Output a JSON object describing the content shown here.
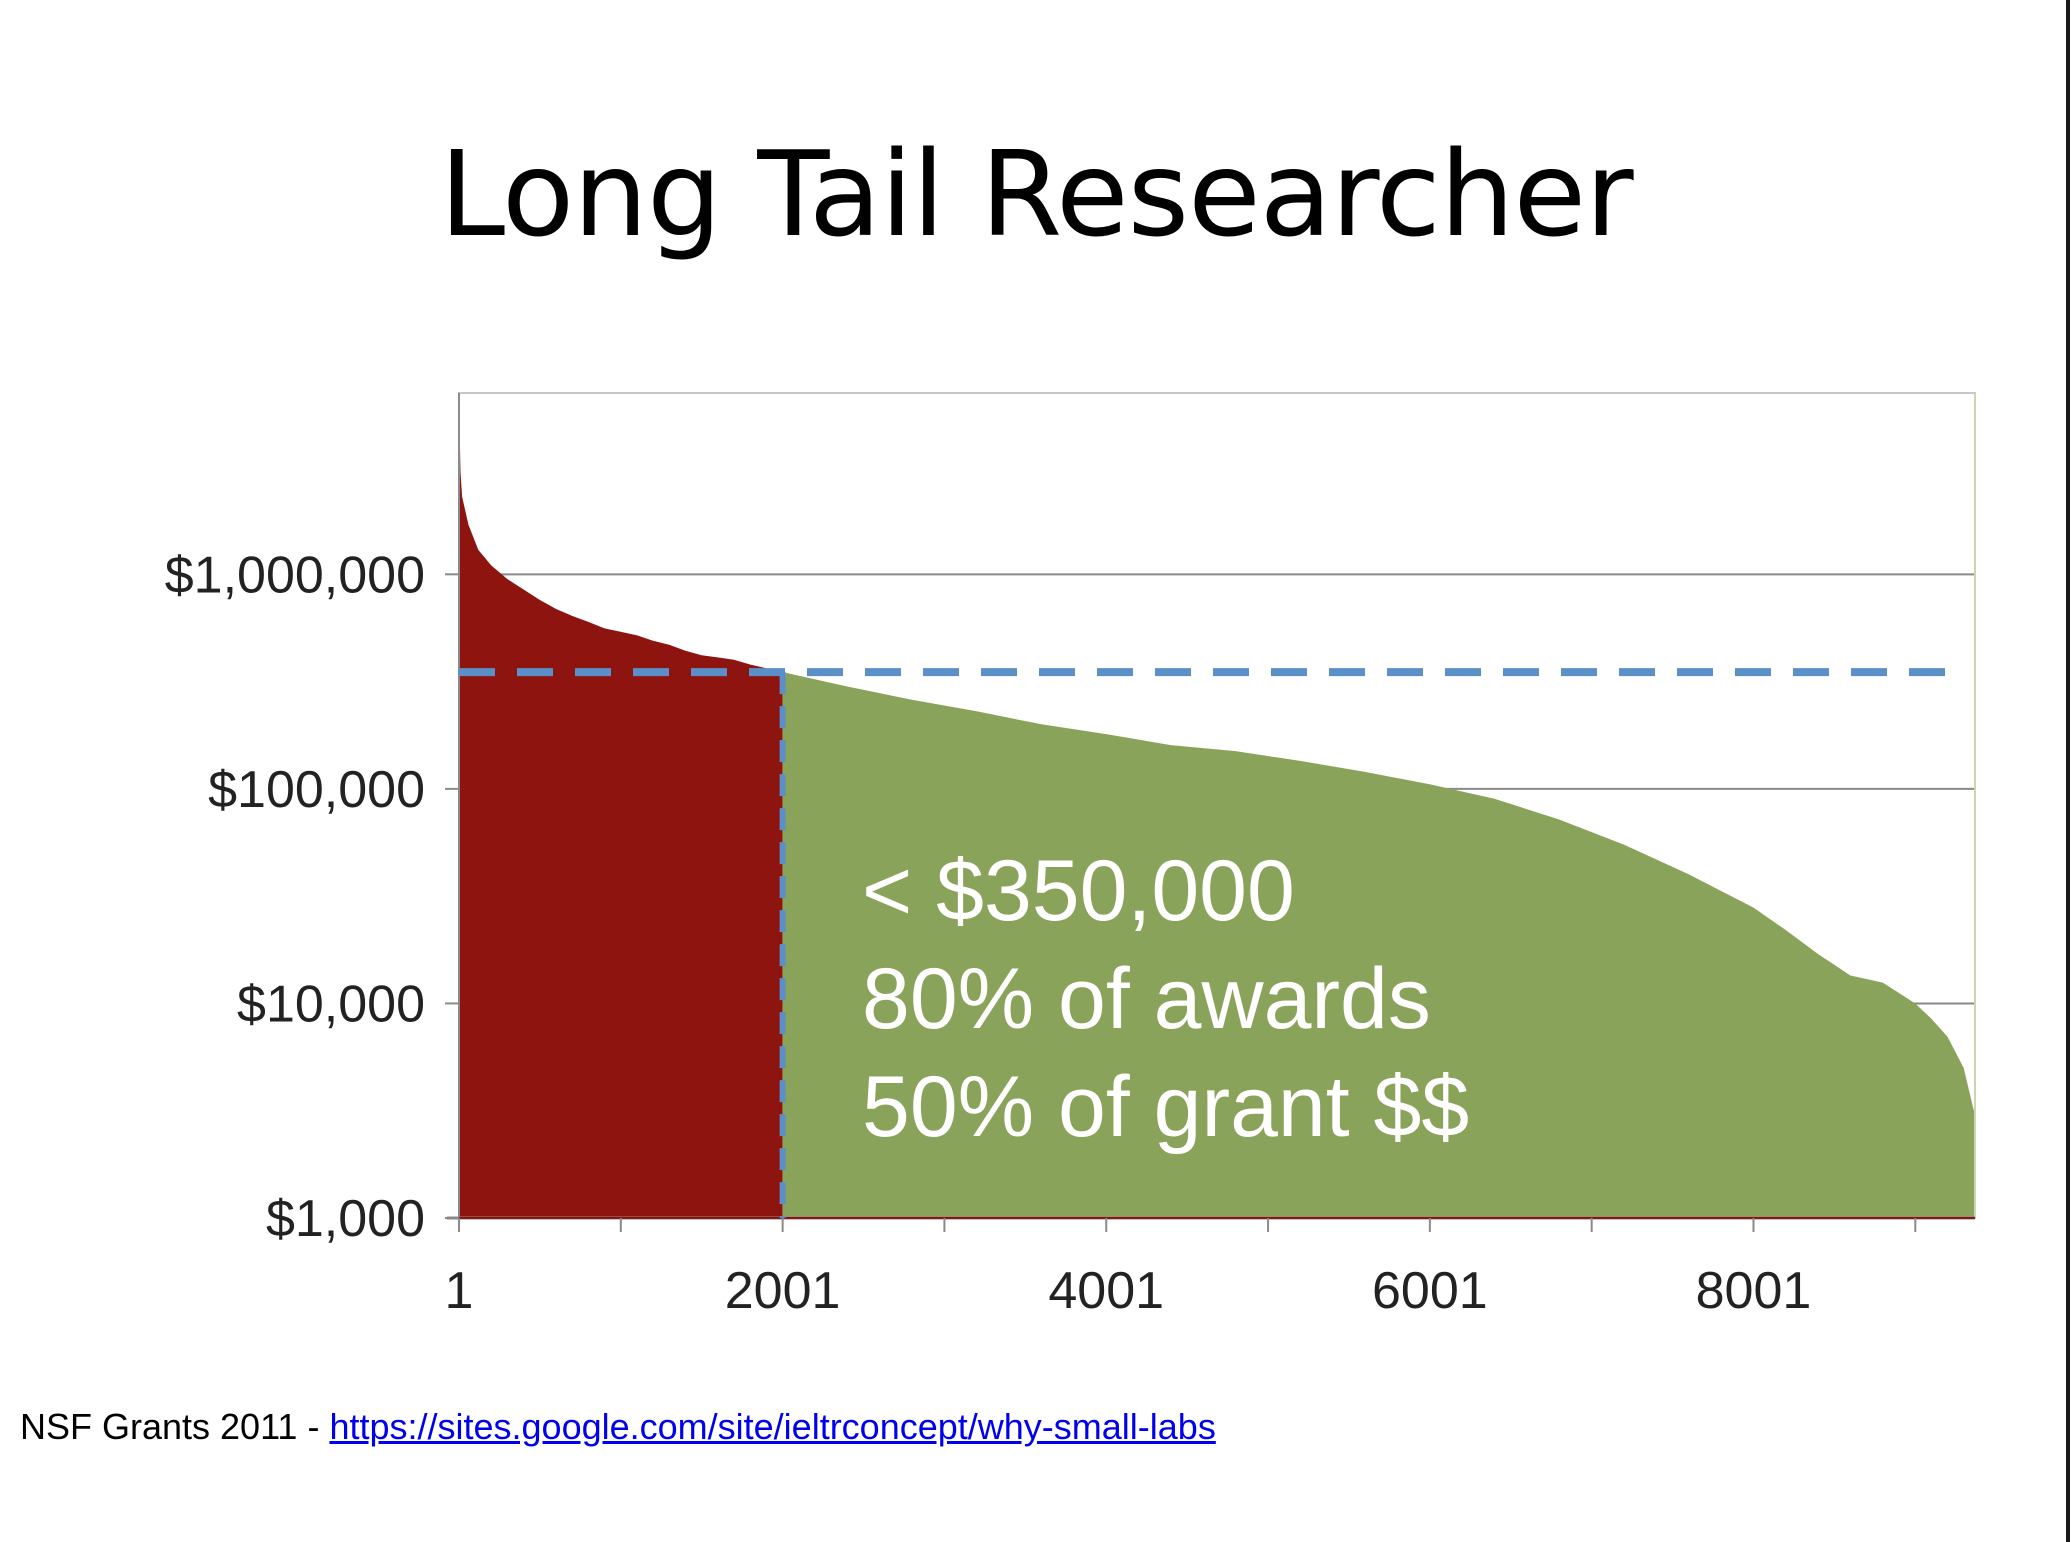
{
  "slide": {
    "title": "Long Tail Researcher"
  },
  "caption": {
    "prefix": "NSF Grants 2011 - ",
    "link_text": "https://sites.google.com/site/ieltrconcept/why-small-labs"
  },
  "chart_data": {
    "type": "area",
    "title": "",
    "xlabel": "",
    "ylabel": "",
    "yscale": "log",
    "ylim": [
      1000,
      7000000
    ],
    "xlim": [
      1,
      9370
    ],
    "x_ticks": [
      1,
      2001,
      4001,
      6001,
      8001
    ],
    "y_ticks": [
      {
        "value": 1000,
        "label": "$1,000"
      },
      {
        "value": 10000,
        "label": "$10,000"
      },
      {
        "value": 100000,
        "label": "$100,000"
      },
      {
        "value": 1000000,
        "label": "$1,000,000"
      }
    ],
    "grid": true,
    "threshold": {
      "value": 350000,
      "x": 2001,
      "style": "dashed",
      "color": "#5b8fc7"
    },
    "series": [
      {
        "color": "#8e1410",
        "x": [
          1,
          10,
          20,
          60,
          120,
          200,
          300,
          400,
          500,
          600,
          700,
          800,
          900,
          1000,
          1100,
          1200,
          1300,
          1400,
          1500,
          1600,
          1700,
          1800,
          1900,
          2001
        ],
        "values": [
          6500000,
          3000000,
          2300000,
          1700000,
          1300000,
          1100000,
          950000,
          850000,
          760000,
          690000,
          640000,
          600000,
          560000,
          540000,
          520000,
          490000,
          470000,
          440000,
          420000,
          410000,
          400000,
          380000,
          365000,
          350000
        ]
      },
      {
        "color": "#8aa35a",
        "x": [
          2001,
          2400,
          2800,
          3200,
          3600,
          4000,
          4400,
          4800,
          5200,
          5600,
          6000,
          6400,
          6800,
          7200,
          7600,
          8000,
          8200,
          8400,
          8600,
          8800,
          9000,
          9100,
          9200,
          9300,
          9370
        ],
        "values": [
          350000,
          300000,
          260000,
          230000,
          200000,
          180000,
          160000,
          150000,
          135000,
          120000,
          105000,
          90000,
          72000,
          55000,
          40000,
          28000,
          22000,
          17000,
          13500,
          12500,
          10000,
          8500,
          7000,
          5000,
          3000
        ]
      }
    ],
    "annotation": [
      "< $350,000",
      "80% of awards",
      "50% of grant $$"
    ]
  }
}
